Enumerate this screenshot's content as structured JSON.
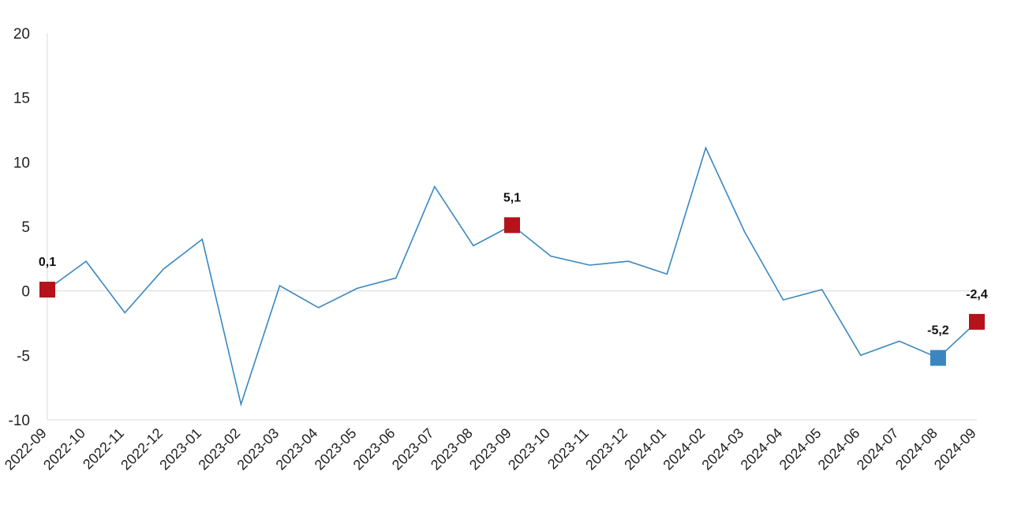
{
  "chart_data": {
    "type": "line",
    "title": "",
    "xlabel": "",
    "ylabel": "",
    "ylim": [
      -10,
      20
    ],
    "yticks": [
      20,
      15,
      10,
      5,
      0,
      -5,
      -10
    ],
    "ytick_labels": [
      "20",
      "15",
      "10",
      "5",
      "0",
      "-5",
      "-10"
    ],
    "grid": false,
    "legend": "none",
    "line_color": "#3a87c0",
    "categories": [
      "2022-09",
      "2022-10",
      "2022-11",
      "2022-12",
      "2023-01",
      "2023-02",
      "2023-03",
      "2023-04",
      "2023-05",
      "2023-06",
      "2023-07",
      "2023-08",
      "2023-09",
      "2023-10",
      "2023-11",
      "2023-12",
      "2024-01",
      "2024-02",
      "2024-03",
      "2024-04",
      "2024-05",
      "2024-06",
      "2024-07",
      "2024-08",
      "2024-09"
    ],
    "series": [
      {
        "values": [
          0.1,
          2.3,
          -1.7,
          1.7,
          4.0,
          -8.8,
          0.4,
          -1.3,
          0.2,
          1.0,
          8.1,
          3.5,
          5.1,
          2.7,
          2.0,
          2.3,
          1.3,
          11.1,
          4.6,
          -0.7,
          0.1,
          -5.0,
          -3.9,
          -5.2,
          -2.4
        ]
      }
    ],
    "highlights": [
      {
        "category": "2022-09",
        "label": "0,1",
        "color": "#b5121b",
        "label_pos": "above"
      },
      {
        "category": "2023-09",
        "label": "5,1",
        "color": "#b5121b",
        "label_pos": "above"
      },
      {
        "category": "2024-08",
        "label": "-5,2",
        "color": "#3a87c0",
        "label_pos": "above"
      },
      {
        "category": "2024-09",
        "label": "-2,4",
        "color": "#b5121b",
        "label_pos": "above"
      }
    ]
  }
}
